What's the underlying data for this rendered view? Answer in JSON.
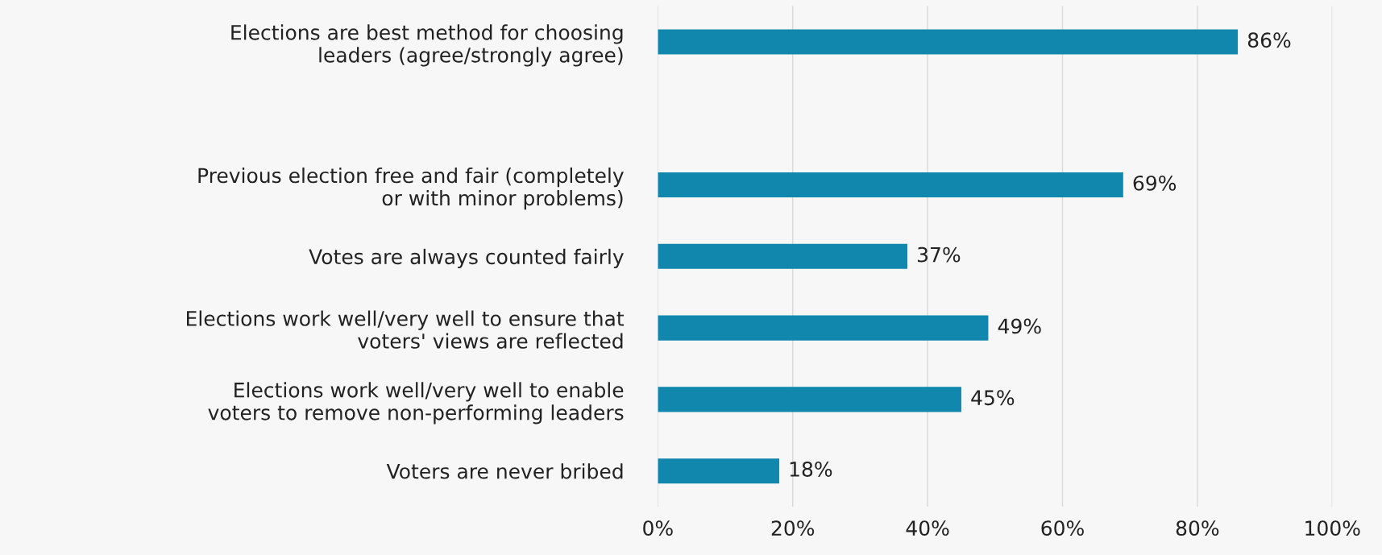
{
  "chart_data": {
    "type": "bar",
    "orientation": "horizontal",
    "categories": [
      "Elections are best method for choosing\nleaders (agree/strongly agree)",
      null,
      "Previous election free and fair (completely\nor with minor problems)",
      "Votes are always counted fairly",
      "Elections work well/very well to ensure that\nvoters' views are reflected",
      "Elections work well/very well to enable\nvoters to remove non-performing leaders",
      "Voters are never bribed"
    ],
    "values": [
      86,
      null,
      69,
      37,
      49,
      45,
      18
    ],
    "color": "#1287ad",
    "value_labels": [
      "86%",
      null,
      "69%",
      "37%",
      "49%",
      "45%",
      "18%"
    ],
    "xlim": [
      0,
      100
    ],
    "xticks": [
      {
        "value": 0,
        "label": "0%"
      },
      {
        "value": 20,
        "label": "20%"
      },
      {
        "value": 40,
        "label": "40%"
      },
      {
        "value": 60,
        "label": "60%"
      },
      {
        "value": 80,
        "label": "80%"
      },
      {
        "value": 100,
        "label": "100%"
      }
    ],
    "grid": "x"
  }
}
